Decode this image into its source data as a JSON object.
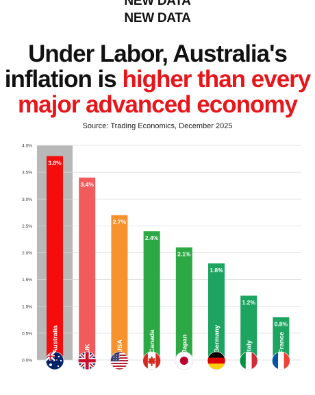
{
  "header": {
    "badge_top": "NEW DATA",
    "badge": "NEW DATA",
    "headline_line1": "Under Labor, Australia's",
    "headline_line2_black": "inflation is ",
    "headline_line2_red": "higher than every",
    "headline_line3_red": "major advanced economy",
    "source": "Source: Trading Economics, December 2025"
  },
  "colors": {
    "accent_red": "#e8151a",
    "highlight_bg": "#b8b8b8"
  },
  "chart_data": {
    "type": "bar",
    "title": "",
    "xlabel": "",
    "ylabel": "",
    "ylim": [
      0,
      4.0
    ],
    "yticks": [
      "0.0%",
      "0.5%",
      "1.0%",
      "1.5%",
      "2.0%",
      "2.5%",
      "3.0%",
      "3.5%",
      "4.0%"
    ],
    "grid": true,
    "highlight_category": "Australia",
    "categories": [
      "Australia",
      "UK",
      "USA",
      "Canada",
      "Japan",
      "Germany",
      "Italy",
      "France"
    ],
    "values": [
      3.8,
      3.4,
      2.7,
      2.4,
      2.1,
      1.8,
      1.2,
      0.8
    ],
    "value_labels": [
      "3.8%",
      "3.4%",
      "2.7%",
      "2.4%",
      "2.1%",
      "1.8%",
      "1.2%",
      "0.8%"
    ],
    "bar_colors": [
      "#f50c0c",
      "#f25b5b",
      "#f7922f",
      "#2ca844",
      "#2ca844",
      "#1da460",
      "#1da460",
      "#1da460"
    ],
    "flag_icons": [
      "australia-flag-icon",
      "uk-flag-icon",
      "usa-flag-icon",
      "canada-flag-icon",
      "japan-flag-icon",
      "germany-flag-icon",
      "italy-flag-icon",
      "france-flag-icon"
    ]
  }
}
